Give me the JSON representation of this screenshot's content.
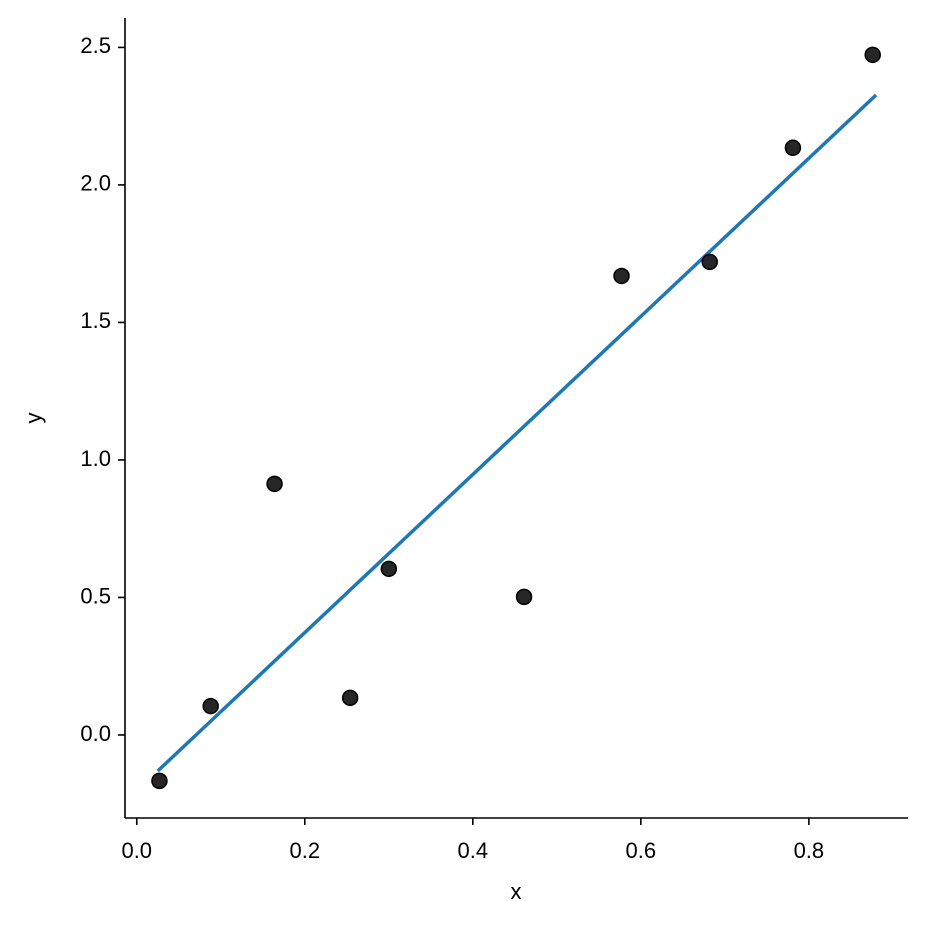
{
  "chart_data": {
    "type": "scatter",
    "xlabel": "x",
    "ylabel": "y",
    "xlim": [
      -0.014,
      0.918
    ],
    "ylim": [
      -0.302,
      2.607
    ],
    "xticks": [
      {
        "value": 0,
        "label": "0.0"
      },
      0.2,
      0.4,
      0.6,
      0.8
    ],
    "yticks": [
      {
        "value": 0,
        "label": "0.0"
      },
      0.5,
      {
        "value": 1,
        "label": "1.0"
      },
      1.5,
      {
        "value": 2,
        "label": "2.0"
      },
      2.5
    ],
    "series": [
      {
        "type": "scatter",
        "color": "#262626",
        "x": [
          0.027,
          0.088,
          0.164,
          0.254,
          0.3,
          0.461,
          0.577,
          0.682,
          0.781,
          0.876
        ],
        "y": [
          -0.167,
          0.105,
          0.913,
          0.135,
          0.604,
          0.502,
          1.669,
          1.72,
          2.135,
          2.473
        ]
      },
      {
        "type": "line",
        "color": "#1f77b4",
        "x": [
          0.025,
          0.88
        ],
        "y": [
          -0.131,
          2.327
        ]
      }
    ]
  }
}
